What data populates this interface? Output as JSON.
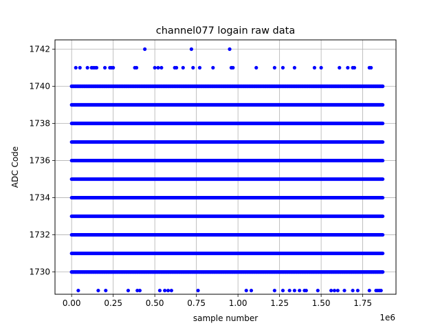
{
  "chart_data": {
    "type": "scatter",
    "title": "channel077 logain raw data",
    "xlabel": "sample number",
    "ylabel": "ADC Code",
    "x_offset_label": "1e6",
    "xlim": [
      -100000,
      1950000
    ],
    "ylim": [
      1728.8,
      1742.5
    ],
    "grid": true,
    "x_ticks": [
      0,
      250000,
      500000,
      750000,
      1000000,
      1250000,
      1500000,
      1750000
    ],
    "x_tick_labels": [
      "0.00",
      "0.25",
      "0.50",
      "0.75",
      "1.00",
      "1.25",
      "1.50",
      "1.75"
    ],
    "y_ticks": [
      1730,
      1732,
      1734,
      1736,
      1738,
      1740,
      1742
    ],
    "y_tick_labels": [
      "1730",
      "1732",
      "1734",
      "1736",
      "1738",
      "1740",
      "1742"
    ],
    "marker_color": "#0000ff",
    "series": [
      {
        "x_range": [
          0,
          1870000
        ],
        "dense_levels": [
          1730,
          1731,
          1732,
          1733,
          1734,
          1735,
          1736,
          1737,
          1738,
          1739,
          1740
        ],
        "sparse_points": [
          {
            "x": 440000,
            "y": 1742
          },
          {
            "x": 720000,
            "y": 1742
          },
          {
            "x": 950000,
            "y": 1742
          },
          {
            "x": 25000,
            "y": 1741
          },
          {
            "x": 50000,
            "y": 1741
          },
          {
            "x": 95000,
            "y": 1741
          },
          {
            "x": 120000,
            "y": 1741
          },
          {
            "x": 130000,
            "y": 1741
          },
          {
            "x": 140000,
            "y": 1741
          },
          {
            "x": 150000,
            "y": 1741
          },
          {
            "x": 200000,
            "y": 1741
          },
          {
            "x": 230000,
            "y": 1741
          },
          {
            "x": 240000,
            "y": 1741
          },
          {
            "x": 250000,
            "y": 1741
          },
          {
            "x": 380000,
            "y": 1741
          },
          {
            "x": 390000,
            "y": 1741
          },
          {
            "x": 500000,
            "y": 1741
          },
          {
            "x": 520000,
            "y": 1741
          },
          {
            "x": 540000,
            "y": 1741
          },
          {
            "x": 620000,
            "y": 1741
          },
          {
            "x": 630000,
            "y": 1741
          },
          {
            "x": 670000,
            "y": 1741
          },
          {
            "x": 730000,
            "y": 1741
          },
          {
            "x": 770000,
            "y": 1741
          },
          {
            "x": 850000,
            "y": 1741
          },
          {
            "x": 960000,
            "y": 1741
          },
          {
            "x": 970000,
            "y": 1741
          },
          {
            "x": 1110000,
            "y": 1741
          },
          {
            "x": 1220000,
            "y": 1741
          },
          {
            "x": 1270000,
            "y": 1741
          },
          {
            "x": 1340000,
            "y": 1741
          },
          {
            "x": 1460000,
            "y": 1741
          },
          {
            "x": 1500000,
            "y": 1741
          },
          {
            "x": 1610000,
            "y": 1741
          },
          {
            "x": 1660000,
            "y": 1741
          },
          {
            "x": 1690000,
            "y": 1741
          },
          {
            "x": 1700000,
            "y": 1741
          },
          {
            "x": 1790000,
            "y": 1741
          },
          {
            "x": 1800000,
            "y": 1741
          },
          {
            "x": 40000,
            "y": 1729
          },
          {
            "x": 160000,
            "y": 1729
          },
          {
            "x": 205000,
            "y": 1729
          },
          {
            "x": 340000,
            "y": 1729
          },
          {
            "x": 395000,
            "y": 1729
          },
          {
            "x": 410000,
            "y": 1729
          },
          {
            "x": 530000,
            "y": 1729
          },
          {
            "x": 560000,
            "y": 1729
          },
          {
            "x": 580000,
            "y": 1729
          },
          {
            "x": 600000,
            "y": 1729
          },
          {
            "x": 760000,
            "y": 1729
          },
          {
            "x": 1050000,
            "y": 1729
          },
          {
            "x": 1080000,
            "y": 1729
          },
          {
            "x": 1220000,
            "y": 1729
          },
          {
            "x": 1270000,
            "y": 1729
          },
          {
            "x": 1310000,
            "y": 1729
          },
          {
            "x": 1340000,
            "y": 1729
          },
          {
            "x": 1370000,
            "y": 1729
          },
          {
            "x": 1400000,
            "y": 1729
          },
          {
            "x": 1410000,
            "y": 1729
          },
          {
            "x": 1480000,
            "y": 1729
          },
          {
            "x": 1560000,
            "y": 1729
          },
          {
            "x": 1580000,
            "y": 1729
          },
          {
            "x": 1600000,
            "y": 1729
          },
          {
            "x": 1640000,
            "y": 1729
          },
          {
            "x": 1690000,
            "y": 1729
          },
          {
            "x": 1720000,
            "y": 1729
          },
          {
            "x": 1790000,
            "y": 1729
          },
          {
            "x": 1830000,
            "y": 1729
          },
          {
            "x": 1840000,
            "y": 1729
          },
          {
            "x": 1850000,
            "y": 1729
          },
          {
            "x": 1860000,
            "y": 1729
          }
        ]
      }
    ]
  }
}
